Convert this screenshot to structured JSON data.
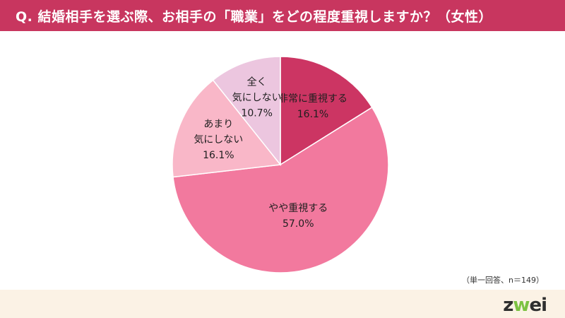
{
  "header": {
    "question": "Q. 結婚相手を選ぶ際、お相手の「職業」をどの程度重視しますか？（女性）"
  },
  "colors": {
    "header_bg": "#c8365f",
    "footer_bg": "#fbf2e5"
  },
  "chart_data": {
    "type": "pie",
    "slices": [
      {
        "label": [
          "非常に重視する"
        ],
        "value": 16.1,
        "value_label": "16.1%",
        "color": "#cc3563"
      },
      {
        "label": [
          "やや重視する"
        ],
        "value": 57.0,
        "value_label": "57.0%",
        "color": "#f2799e"
      },
      {
        "label": [
          "あまり",
          "気にしない"
        ],
        "value": 16.1,
        "value_label": "16.1%",
        "color": "#f9b7c8"
      },
      {
        "label": [
          "全く",
          "気にしない"
        ],
        "value": 10.7,
        "value_label": "10.7%",
        "color": "#ecc6df"
      }
    ],
    "start": "12 o'clock",
    "direction": "clockwise"
  },
  "note": "（単一回答、n＝149）",
  "logo": {
    "text_before": "z",
    "mark": "w",
    "text_after": "ei"
  }
}
